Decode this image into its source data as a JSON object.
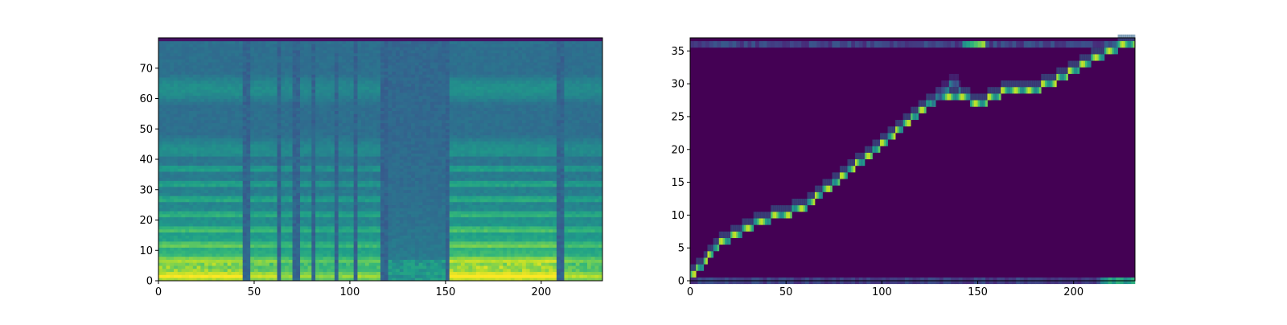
{
  "colormap": "viridis",
  "colors": {
    "low": "#440154",
    "mid": "#21918c",
    "high": "#fde725",
    "axis": "#000000"
  },
  "chart_data": [
    {
      "type": "heatmap",
      "title": "",
      "xlabel": "",
      "ylabel": "",
      "xlim": [
        0,
        232
      ],
      "ylim": [
        0,
        80
      ],
      "xticks": [
        0,
        50,
        100,
        150,
        200
      ],
      "yticks": [
        0,
        10,
        20,
        30,
        40,
        50,
        60,
        70
      ],
      "n_frames": 232,
      "n_mel": 80,
      "segments": [
        {
          "start": 0,
          "end": 45,
          "kind": "voiced",
          "energy": 0.95
        },
        {
          "start": 45,
          "end": 48,
          "kind": "silence",
          "energy": 0.15
        },
        {
          "start": 48,
          "end": 62,
          "kind": "voiced",
          "energy": 0.85
        },
        {
          "start": 62,
          "end": 65,
          "kind": "silence",
          "energy": 0.15
        },
        {
          "start": 65,
          "end": 71,
          "kind": "voiced",
          "energy": 0.75
        },
        {
          "start": 71,
          "end": 74,
          "kind": "silence",
          "energy": 0.2
        },
        {
          "start": 74,
          "end": 80,
          "kind": "voiced",
          "energy": 0.75
        },
        {
          "start": 80,
          "end": 82,
          "kind": "silence",
          "energy": 0.2
        },
        {
          "start": 82,
          "end": 92,
          "kind": "voiced",
          "energy": 0.7
        },
        {
          "start": 92,
          "end": 94,
          "kind": "silence",
          "energy": 0.2
        },
        {
          "start": 94,
          "end": 102,
          "kind": "voiced",
          "energy": 0.7
        },
        {
          "start": 102,
          "end": 104,
          "kind": "silence",
          "energy": 0.15
        },
        {
          "start": 104,
          "end": 116,
          "kind": "voiced",
          "energy": 0.75
        },
        {
          "start": 116,
          "end": 120,
          "kind": "silence",
          "energy": 0.15
        },
        {
          "start": 120,
          "end": 150,
          "kind": "unvoiced",
          "energy": 0.6
        },
        {
          "start": 150,
          "end": 152,
          "kind": "silence",
          "energy": 0.2
        },
        {
          "start": 152,
          "end": 208,
          "kind": "voiced",
          "energy": 1.0
        },
        {
          "start": 208,
          "end": 213,
          "kind": "silence",
          "energy": 0.25
        },
        {
          "start": 213,
          "end": 232,
          "kind": "voiced",
          "energy": 0.8
        }
      ]
    },
    {
      "type": "heatmap",
      "title": "",
      "xlabel": "",
      "ylabel": "",
      "xlim": [
        0,
        232
      ],
      "ylim": [
        0,
        37
      ],
      "xticks": [
        0,
        50,
        100,
        150,
        200
      ],
      "yticks": [
        0,
        5,
        10,
        15,
        20,
        25,
        30,
        35
      ],
      "n_frames": 232,
      "n_tokens": 37,
      "alignment_path": [
        [
          0,
          1
        ],
        [
          3,
          1.5
        ],
        [
          5,
          2
        ],
        [
          8,
          3
        ],
        [
          10,
          4
        ],
        [
          13,
          5
        ],
        [
          17,
          6
        ],
        [
          24,
          7
        ],
        [
          30,
          8
        ],
        [
          36,
          9
        ],
        [
          48,
          10
        ],
        [
          58,
          11
        ],
        [
          63,
          12
        ],
        [
          67,
          13
        ],
        [
          71,
          14
        ],
        [
          76,
          15
        ],
        [
          80,
          16
        ],
        [
          84,
          17
        ],
        [
          88,
          18
        ],
        [
          93,
          19
        ],
        [
          97,
          20
        ],
        [
          101,
          21
        ],
        [
          105,
          22
        ],
        [
          109,
          23
        ],
        [
          113,
          24
        ],
        [
          117,
          25
        ],
        [
          121,
          26
        ],
        [
          125,
          27
        ],
        [
          130,
          28
        ],
        [
          140,
          28
        ],
        [
          150,
          27
        ],
        [
          160,
          28
        ],
        [
          163,
          29
        ],
        [
          178,
          29
        ],
        [
          188,
          30
        ],
        [
          194,
          31
        ],
        [
          200,
          32
        ],
        [
          205,
          33
        ],
        [
          212,
          34
        ],
        [
          220,
          35
        ],
        [
          225,
          36
        ],
        [
          232,
          36
        ]
      ],
      "side_branch": [
        [
          126,
          27
        ],
        [
          132,
          29
        ],
        [
          137,
          30
        ],
        [
          141,
          29
        ]
      ],
      "bottom_row_bright": [
        [
          214,
          232
        ]
      ],
      "top_row_bright": [
        [
          142,
          152
        ],
        [
          222,
          232
        ]
      ]
    }
  ]
}
